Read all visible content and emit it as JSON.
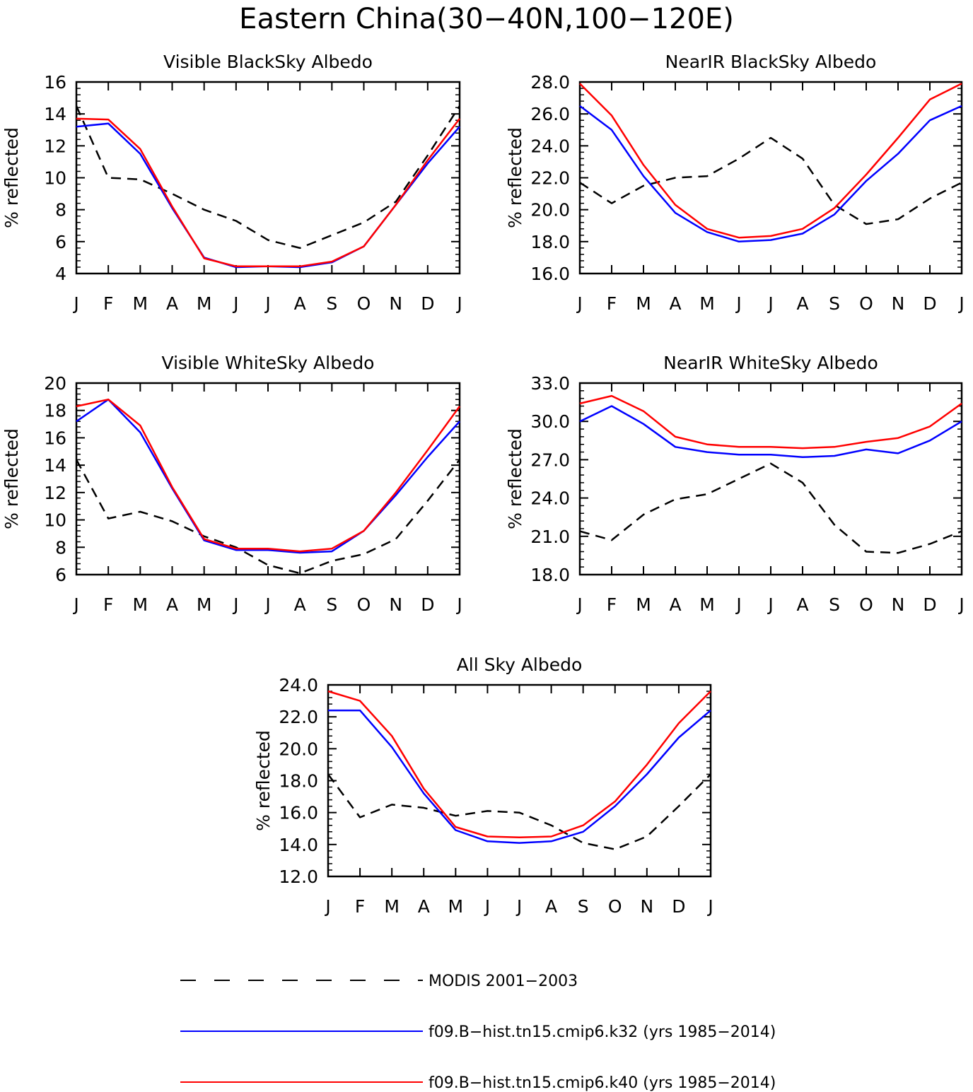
{
  "figure": {
    "title": "Eastern China(30−40N,100−120E)"
  },
  "styles": {
    "modis_color": "#000000",
    "k32_color": "#0000ff",
    "k40_color": "#ff0000"
  },
  "legend": {
    "entries": [
      {
        "key": "modis",
        "label": "MODIS 2001−2003"
      },
      {
        "key": "k32",
        "label": "f09.B−hist.tn15.cmip6.k32 (yrs 1985−2014)"
      },
      {
        "key": "k40",
        "label": "f09.B−hist.tn15.cmip6.k40 (yrs 1985−2014)"
      }
    ]
  },
  "chart_data": [
    {
      "type": "line",
      "title": "Visible BlackSky Albedo",
      "ylabel": "% reflected",
      "categories": [
        "J",
        "F",
        "M",
        "A",
        "M",
        "J",
        "J",
        "A",
        "S",
        "O",
        "N",
        "D",
        "J"
      ],
      "ylim": [
        4,
        16
      ],
      "yticks": [
        "4",
        "6",
        "8",
        "10",
        "12",
        "14",
        "16"
      ],
      "series": [
        {
          "key": "modis",
          "values": [
            14.5,
            10.0,
            9.9,
            9.0,
            8.0,
            7.3,
            6.1,
            5.6,
            6.4,
            7.2,
            8.5,
            11.4,
            14.5
          ]
        },
        {
          "key": "k32",
          "values": [
            13.2,
            13.4,
            11.5,
            8.1,
            5.0,
            4.4,
            4.45,
            4.4,
            4.7,
            5.7,
            8.3,
            10.9,
            13.2
          ]
        },
        {
          "key": "k40",
          "values": [
            13.7,
            13.65,
            11.8,
            8.2,
            4.95,
            4.45,
            4.45,
            4.45,
            4.75,
            5.7,
            8.3,
            11.1,
            13.7
          ]
        }
      ]
    },
    {
      "type": "line",
      "title": "NearIR BlackSky Albedo",
      "ylabel": "% reflected",
      "categories": [
        "J",
        "F",
        "M",
        "A",
        "M",
        "J",
        "J",
        "A",
        "S",
        "O",
        "N",
        "D",
        "J"
      ],
      "ylim": [
        16,
        28
      ],
      "yticks": [
        "16.0",
        "18.0",
        "20.0",
        "22.0",
        "24.0",
        "26.0",
        "28.0"
      ],
      "series": [
        {
          "key": "modis",
          "values": [
            21.7,
            20.4,
            21.5,
            22.0,
            22.1,
            23.2,
            24.5,
            23.2,
            20.3,
            19.1,
            19.4,
            20.7,
            21.7
          ]
        },
        {
          "key": "k32",
          "values": [
            26.5,
            25.0,
            22.1,
            19.8,
            18.6,
            18.0,
            18.1,
            18.5,
            19.7,
            21.8,
            23.5,
            25.6,
            26.5
          ]
        },
        {
          "key": "k40",
          "values": [
            27.9,
            25.9,
            22.8,
            20.3,
            18.8,
            18.25,
            18.35,
            18.8,
            20.1,
            22.2,
            24.5,
            26.9,
            27.9
          ]
        }
      ]
    },
    {
      "type": "line",
      "title": "Visible WhiteSky Albedo",
      "ylabel": "% reflected",
      "categories": [
        "J",
        "F",
        "M",
        "A",
        "M",
        "J",
        "J",
        "A",
        "S",
        "O",
        "N",
        "D",
        "J"
      ],
      "ylim": [
        6,
        20
      ],
      "yticks": [
        "6",
        "8",
        "10",
        "12",
        "14",
        "16",
        "18",
        "20"
      ],
      "series": [
        {
          "key": "modis",
          "values": [
            14.4,
            10.1,
            10.6,
            9.9,
            8.8,
            8.0,
            6.7,
            6.1,
            7.0,
            7.5,
            8.6,
            11.4,
            14.4
          ]
        },
        {
          "key": "k32",
          "values": [
            17.2,
            18.8,
            16.4,
            12.3,
            8.5,
            7.8,
            7.8,
            7.6,
            7.7,
            9.2,
            11.8,
            14.6,
            17.2
          ]
        },
        {
          "key": "k40",
          "values": [
            18.3,
            18.8,
            16.9,
            12.4,
            8.6,
            7.9,
            7.9,
            7.7,
            7.9,
            9.2,
            12.0,
            15.1,
            18.3
          ]
        }
      ]
    },
    {
      "type": "line",
      "title": "NearIR WhiteSky Albedo",
      "ylabel": "% reflected",
      "categories": [
        "J",
        "F",
        "M",
        "A",
        "M",
        "J",
        "J",
        "A",
        "S",
        "O",
        "N",
        "D",
        "J"
      ],
      "ylim": [
        18,
        33
      ],
      "yticks": [
        "18.0",
        "21.0",
        "24.0",
        "27.0",
        "30.0",
        "33.0"
      ],
      "series": [
        {
          "key": "modis",
          "values": [
            21.4,
            20.7,
            22.7,
            23.9,
            24.3,
            25.5,
            26.7,
            25.2,
            21.9,
            19.8,
            19.7,
            20.4,
            21.4
          ]
        },
        {
          "key": "k32",
          "values": [
            30.0,
            31.2,
            29.8,
            28.0,
            27.6,
            27.4,
            27.4,
            27.2,
            27.3,
            27.8,
            27.5,
            28.5,
            30.0
          ]
        },
        {
          "key": "k40",
          "values": [
            31.4,
            32.0,
            30.8,
            28.8,
            28.2,
            28.0,
            28.0,
            27.9,
            28.0,
            28.4,
            28.7,
            29.6,
            31.4
          ]
        }
      ]
    },
    {
      "type": "line",
      "title": "All Sky Albedo",
      "ylabel": "% reflected",
      "categories": [
        "J",
        "F",
        "M",
        "A",
        "M",
        "J",
        "J",
        "A",
        "S",
        "O",
        "N",
        "D",
        "J"
      ],
      "ylim": [
        12,
        24
      ],
      "yticks": [
        "12.0",
        "14.0",
        "16.0",
        "18.0",
        "20.0",
        "22.0",
        "24.0"
      ],
      "series": [
        {
          "key": "modis",
          "values": [
            18.4,
            15.7,
            16.5,
            16.3,
            15.8,
            16.1,
            16.0,
            15.2,
            14.1,
            13.7,
            14.5,
            16.4,
            18.4
          ]
        },
        {
          "key": "k32",
          "values": [
            22.4,
            22.4,
            20.1,
            17.2,
            14.9,
            14.2,
            14.1,
            14.2,
            14.8,
            16.4,
            18.4,
            20.7,
            22.4
          ]
        },
        {
          "key": "k40",
          "values": [
            23.6,
            23.0,
            20.8,
            17.5,
            15.1,
            14.5,
            14.45,
            14.5,
            15.2,
            16.7,
            19.0,
            21.6,
            23.6
          ]
        }
      ]
    }
  ]
}
